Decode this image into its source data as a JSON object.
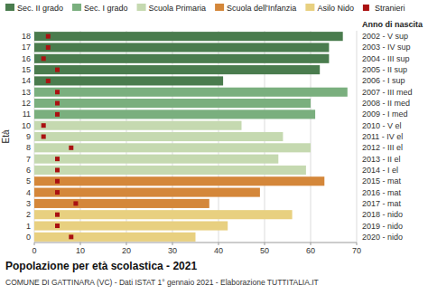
{
  "chart_data": {
    "type": "bar",
    "orientation": "horizontal",
    "stacked": true,
    "title": "Popolazione per età scolastica - 2021",
    "subtitle": "COMUNE DI GATTINARA (VC) - Dati ISTAT 1° gennaio 2021 - Elaborazione TUTTITALIA.IT",
    "y_label": "Età",
    "y2_label": "Anno di nascita",
    "categories": [
      "18",
      "17",
      "16",
      "15",
      "14",
      "13",
      "12",
      "11",
      "10",
      "9",
      "8",
      "7",
      "6",
      "5",
      "4",
      "3",
      "2",
      "1",
      "0"
    ],
    "y2_categories": [
      "2002 - V sup",
      "2003 - IV sup",
      "2004 - III sup",
      "2005 - II sup",
      "2006 - I sup",
      "2007 - III med",
      "2008 - II med",
      "2009 - I med",
      "2010 - V el",
      "2011 - IV el",
      "2012 - III el",
      "2013 - II el",
      "2014 - I el",
      "2015 - mat",
      "2016 - mat",
      "2017 - mat",
      "2018 - nido",
      "2019 - nido",
      "2020 - nido"
    ],
    "series": [
      {
        "name": "Sec. II grado",
        "color": "#4a7c4e",
        "values": [
          67,
          64,
          64,
          62,
          41,
          null,
          null,
          null,
          null,
          null,
          null,
          null,
          null,
          null,
          null,
          null,
          null,
          null,
          null
        ]
      },
      {
        "name": "Sec. I grado",
        "color": "#7aaf7e",
        "values": [
          null,
          null,
          null,
          null,
          null,
          68,
          60,
          61,
          null,
          null,
          null,
          null,
          null,
          null,
          null,
          null,
          null,
          null,
          null
        ]
      },
      {
        "name": "Scuola Primaria",
        "color": "#c5d9b0",
        "values": [
          null,
          null,
          null,
          null,
          null,
          null,
          null,
          null,
          45,
          54,
          60,
          53,
          59,
          null,
          null,
          null,
          null,
          null,
          null
        ]
      },
      {
        "name": "Scuola dell'Infanzia",
        "color": "#d4873a",
        "values": [
          null,
          null,
          null,
          null,
          null,
          null,
          null,
          null,
          null,
          null,
          null,
          null,
          null,
          63,
          49,
          38,
          null,
          null,
          null
        ]
      },
      {
        "name": "Asilo Nido",
        "color": "#e8d080",
        "values": [
          null,
          null,
          null,
          null,
          null,
          null,
          null,
          null,
          null,
          null,
          null,
          null,
          null,
          null,
          null,
          null,
          56,
          42,
          35
        ]
      },
      {
        "name": "Stranieri",
        "type": "scatter",
        "marker": "square",
        "color": "#aa1111",
        "values": [
          3,
          3,
          2,
          5,
          3,
          5,
          5,
          5,
          2,
          2,
          8,
          5,
          5,
          5,
          5,
          9,
          5,
          5,
          8
        ]
      }
    ],
    "xlim": [
      0,
      70
    ],
    "xticks": [
      0,
      10,
      20,
      30,
      40,
      50,
      60,
      70
    ],
    "grid": true,
    "legend": "top"
  }
}
